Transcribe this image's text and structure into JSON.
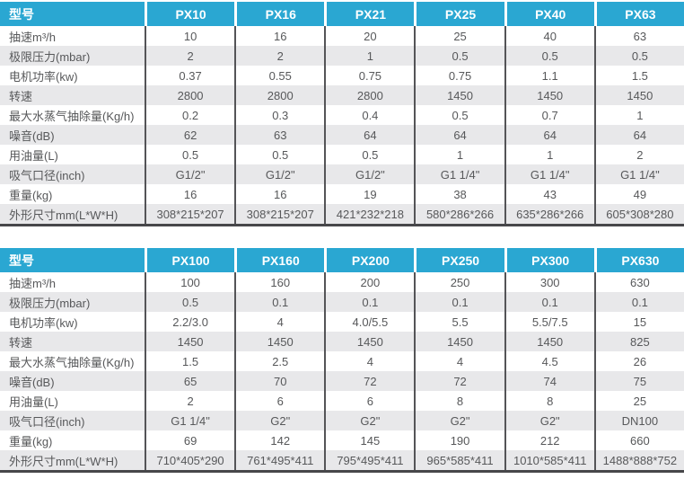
{
  "colors": {
    "accent": "#2AA7D2",
    "row_alt": "#E8E8EA",
    "text": "#57585A",
    "grid_line": "#545457"
  },
  "tables": [
    {
      "name": "px-small-series-specs",
      "header": [
        "型号",
        "PX10",
        "PX16",
        "PX21",
        "PX25",
        "PX40",
        "PX63"
      ],
      "rows": [
        {
          "label": "抽速m³/h",
          "values": [
            "10",
            "16",
            "20",
            "25",
            "40",
            "63"
          ]
        },
        {
          "label": "极限压力(mbar)",
          "values": [
            "2",
            "2",
            "1",
            "0.5",
            "0.5",
            "0.5"
          ]
        },
        {
          "label": "电机功率(kw)",
          "values": [
            "0.37",
            "0.55",
            "0.75",
            "0.75",
            "1.1",
            "1.5"
          ]
        },
        {
          "label": "转速",
          "values": [
            "2800",
            "2800",
            "2800",
            "1450",
            "1450",
            "1450"
          ]
        },
        {
          "label": "最大水蒸气抽除量(Kg/h)",
          "values": [
            "0.2",
            "0.3",
            "0.4",
            "0.5",
            "0.7",
            "1"
          ]
        },
        {
          "label": "噪音(dB)",
          "values": [
            "62",
            "63",
            "64",
            "64",
            "64",
            "64"
          ]
        },
        {
          "label": "用油量(L)",
          "values": [
            "0.5",
            "0.5",
            "0.5",
            "1",
            "1",
            "2"
          ]
        },
        {
          "label": "吸气口径(inch)",
          "values": [
            "G1/2\"",
            "G1/2\"",
            "G1/2\"",
            "G1 1/4\"",
            "G1 1/4\"",
            "G1 1/4\""
          ]
        },
        {
          "label": "重量(kg)",
          "values": [
            "16",
            "16",
            "19",
            "38",
            "43",
            "49"
          ]
        },
        {
          "label": "外形尺寸mm(L*W*H)",
          "values": [
            "308*215*207",
            "308*215*207",
            "421*232*218",
            "580*286*266",
            "635*286*266",
            "605*308*280"
          ]
        }
      ]
    },
    {
      "name": "px-large-series-specs",
      "header": [
        "型号",
        "PX100",
        "PX160",
        "PX200",
        "PX250",
        "PX300",
        "PX630"
      ],
      "rows": [
        {
          "label": "抽速m³/h",
          "values": [
            "100",
            "160",
            "200",
            "250",
            "300",
            "630"
          ]
        },
        {
          "label": "极限压力(mbar)",
          "values": [
            "0.5",
            "0.1",
            "0.1",
            "0.1",
            "0.1",
            "0.1"
          ]
        },
        {
          "label": "电机功率(kw)",
          "values": [
            "2.2/3.0",
            "4",
            "4.0/5.5",
            "5.5",
            "5.5/7.5",
            "15"
          ]
        },
        {
          "label": "转速",
          "values": [
            "1450",
            "1450",
            "1450",
            "1450",
            "1450",
            "825"
          ]
        },
        {
          "label": "最大水蒸气抽除量(Kg/h)",
          "values": [
            "1.5",
            "2.5",
            "4",
            "4",
            "4.5",
            "26"
          ]
        },
        {
          "label": "噪音(dB)",
          "values": [
            "65",
            "70",
            "72",
            "72",
            "74",
            "75"
          ]
        },
        {
          "label": "用油量(L)",
          "values": [
            "2",
            "6",
            "6",
            "8",
            "8",
            "25"
          ]
        },
        {
          "label": "吸气口径(inch)",
          "values": [
            "G1 1/4\"",
            "G2\"",
            "G2\"",
            "G2\"",
            "G2\"",
            "DN100"
          ]
        },
        {
          "label": "重量(kg)",
          "values": [
            "69",
            "142",
            "145",
            "190",
            "212",
            "660"
          ]
        },
        {
          "label": "外形尺寸mm(L*W*H)",
          "values": [
            "710*405*290",
            "761*495*411",
            "795*495*411",
            "965*585*411",
            "1010*585*411",
            "1488*888*752"
          ]
        }
      ]
    }
  ]
}
